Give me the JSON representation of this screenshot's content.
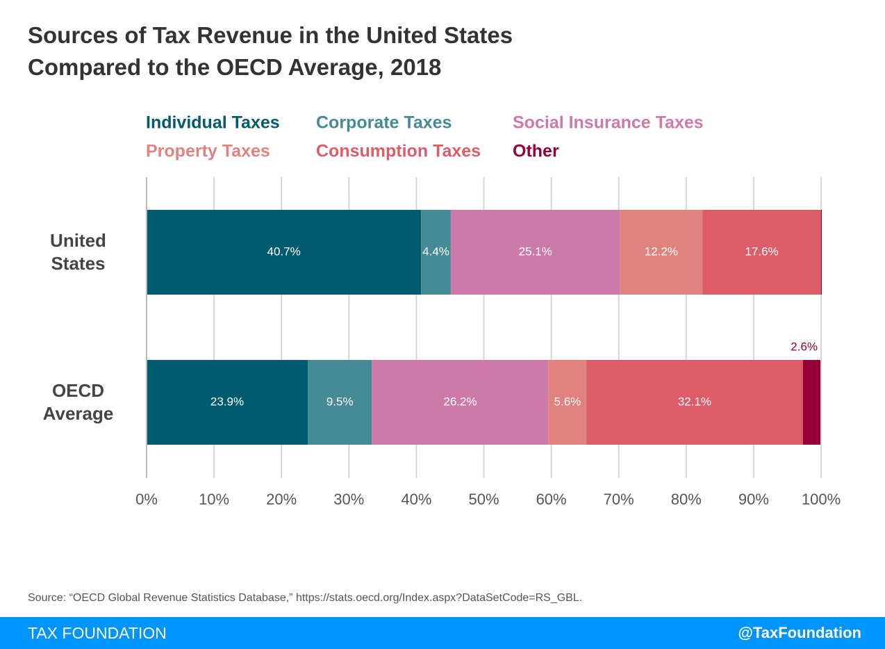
{
  "chart_data": {
    "type": "bar",
    "orientation": "horizontal",
    "stacked": true,
    "title": "Sources of Tax Revenue in the United States Compared to the OECD Average, 2018",
    "categories": [
      "United States",
      "OECD Average"
    ],
    "series": [
      {
        "name": "Individual Taxes",
        "color": "#005a70",
        "values": [
          40.7,
          23.9
        ],
        "value_labels": [
          "40.7%",
          "23.9%"
        ]
      },
      {
        "name": "Corporate Taxes",
        "color": "#468a96",
        "values": [
          4.4,
          9.5
        ],
        "value_labels": [
          "4.4%",
          "9.5%"
        ]
      },
      {
        "name": "Social Insurance Taxes",
        "color": "#cc7ba8",
        "values": [
          25.1,
          26.2
        ],
        "value_labels": [
          "25.1%",
          "26.2%"
        ]
      },
      {
        "name": "Property Taxes",
        "color": "#e0827e",
        "values": [
          12.2,
          5.6
        ],
        "value_labels": [
          "12.2%",
          "5.6%"
        ]
      },
      {
        "name": "Consumption Taxes",
        "color": "#dc5d69",
        "values": [
          17.6,
          32.1
        ],
        "value_labels": [
          "17.6%",
          "32.1%"
        ]
      },
      {
        "name": "Other",
        "color": "#960038",
        "values": [
          0.1,
          2.6
        ],
        "value_labels": [
          null,
          "2.6%"
        ]
      }
    ],
    "xlim": [
      0,
      100
    ],
    "xticks": [
      {
        "value": 0,
        "label": "0%"
      },
      {
        "value": 10,
        "label": "10%"
      },
      {
        "value": 20,
        "label": "20%"
      },
      {
        "value": 30,
        "label": "30%"
      },
      {
        "value": 40,
        "label": "40%"
      },
      {
        "value": 50,
        "label": "50%"
      },
      {
        "value": 60,
        "label": "60%"
      },
      {
        "value": 70,
        "label": "70%"
      },
      {
        "value": 80,
        "label": "80%"
      },
      {
        "value": 90,
        "label": "90%"
      },
      {
        "value": 100,
        "label": "100%"
      }
    ],
    "grid": true,
    "source": "Source: “OECD Global Revenue Statistics Database,” https://stats.oecd.org/Index.aspx?DataSetCode=RS_GBL.",
    "footer_left": "TAX FOUNDATION",
    "footer_right": "@TaxFoundation"
  }
}
